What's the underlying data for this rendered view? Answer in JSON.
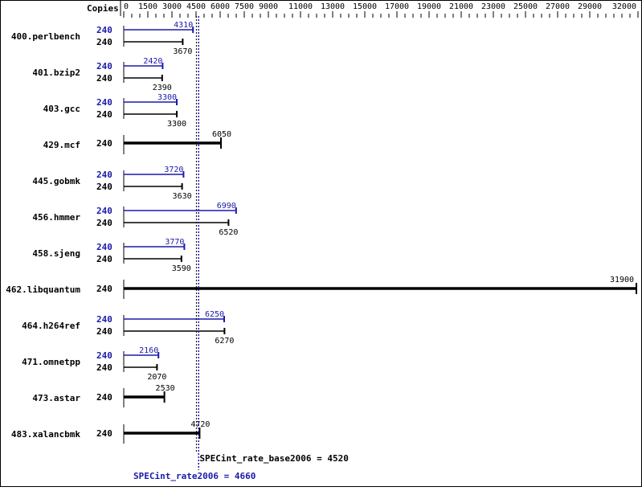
{
  "chart_data": {
    "type": "bar",
    "orientation": "horizontal",
    "header_label": "Copies",
    "xlim": [
      0,
      32000
    ],
    "ticks": [
      0,
      1500,
      3000,
      4500,
      6000,
      7500,
      9000,
      11000,
      13000,
      15000,
      17000,
      19000,
      21000,
      23000,
      25000,
      27000,
      29000,
      32000
    ],
    "colors": {
      "base": "#000000",
      "peak": "#1a1aaa"
    },
    "benchmarks": [
      {
        "name": "400.perlbench",
        "copies_peak": "240",
        "peak": 4310,
        "copies_base": "240",
        "base": 3670
      },
      {
        "name": "401.bzip2",
        "copies_peak": "240",
        "peak": 2420,
        "copies_base": "240",
        "base": 2390
      },
      {
        "name": "403.gcc",
        "copies_peak": "240",
        "peak": 3300,
        "copies_base": "240",
        "base": 3300
      },
      {
        "name": "429.mcf",
        "copies_base": "240",
        "base": 6050
      },
      {
        "name": "445.gobmk",
        "copies_peak": "240",
        "peak": 3720,
        "copies_base": "240",
        "base": 3630
      },
      {
        "name": "456.hmmer",
        "copies_peak": "240",
        "peak": 6990,
        "copies_base": "240",
        "base": 6520
      },
      {
        "name": "458.sjeng",
        "copies_peak": "240",
        "peak": 3770,
        "copies_base": "240",
        "base": 3590
      },
      {
        "name": "462.libquantum",
        "copies_base": "240",
        "base": 31900
      },
      {
        "name": "464.h264ref",
        "copies_peak": "240",
        "peak": 6250,
        "copies_base": "240",
        "base": 6270
      },
      {
        "name": "471.omnetpp",
        "copies_peak": "240",
        "peak": 2160,
        "copies_base": "240",
        "base": 2070
      },
      {
        "name": "473.astar",
        "copies_base": "240",
        "base": 2530
      },
      {
        "name": "483.xalancbmk",
        "copies_base": "240",
        "base": 4720
      }
    ],
    "base_metric": {
      "label": "SPECint_rate_base2006 = 4520",
      "value": 4520
    },
    "peak_metric": {
      "label": "SPECint_rate2006 = 4660",
      "value": 4660
    }
  }
}
